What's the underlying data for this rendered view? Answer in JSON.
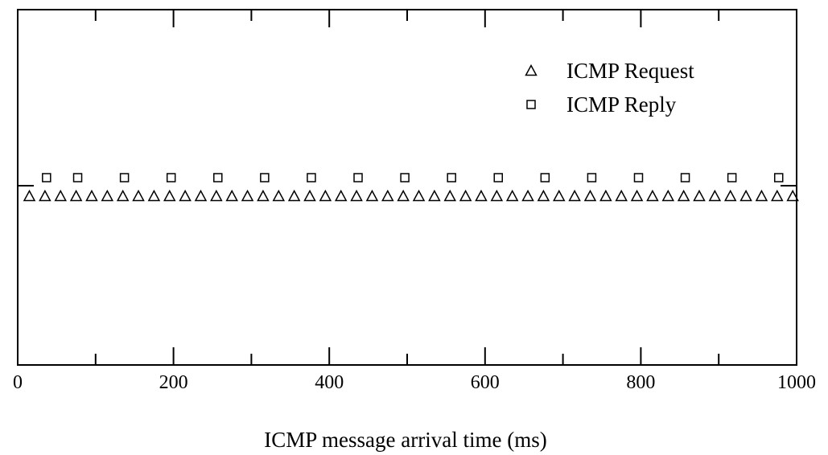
{
  "chart_data": {
    "type": "scatter",
    "xlabel": "ICMP message arrival time (ms)",
    "ylabel": "",
    "xlim": [
      0,
      1000
    ],
    "x_ticks": [
      "0",
      "200",
      "400",
      "600",
      "800",
      "1000"
    ],
    "grid": false,
    "legend": "top-right",
    "series": [
      {
        "name": "ICMP Request",
        "marker": "triangle",
        "color": "#000000",
        "x": [
          15,
          35,
          55,
          75,
          95,
          115,
          135,
          155,
          175,
          195,
          215,
          235,
          255,
          275,
          295,
          315,
          335,
          355,
          375,
          395,
          415,
          435,
          455,
          475,
          495,
          515,
          535,
          555,
          575,
          595,
          615,
          635,
          655,
          675,
          695,
          715,
          735,
          755,
          775,
          795,
          815,
          835,
          855,
          875,
          895,
          915,
          935,
          955,
          975,
          995
        ]
      },
      {
        "name": "ICMP Reply",
        "marker": "square",
        "color": "#000000",
        "x": [
          37,
          77,
          137,
          197,
          257,
          317,
          377,
          437,
          497,
          557,
          617,
          677,
          737,
          797,
          857,
          917,
          977
        ]
      }
    ]
  }
}
